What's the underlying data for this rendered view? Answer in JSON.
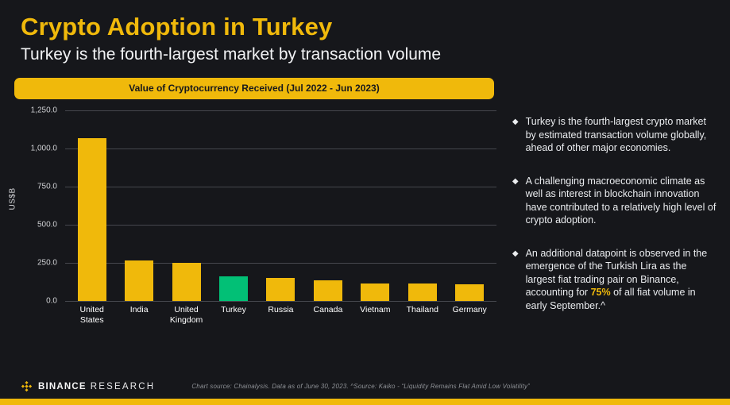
{
  "page": {
    "title": "Crypto Adoption in Turkey",
    "subtitle": "Turkey is the fourth-largest market by transaction volume"
  },
  "banner": {
    "label": "Value of Cryptocurrency Received (Jul 2022 - Jun 2023)"
  },
  "chart_data": {
    "type": "bar",
    "title": "Value of Cryptocurrency Received (Jul 2022 - Jun 2023)",
    "xlabel": "",
    "ylabel": "US$B",
    "ylim": [
      0,
      1250
    ],
    "yticks": [
      "1,250.0",
      "1,000.0",
      "750.0",
      "500.0",
      "250.0",
      "0.0"
    ],
    "categories": [
      "United States",
      "India",
      "United Kingdom",
      "Turkey",
      "Russia",
      "Canada",
      "Vietnam",
      "Thailand",
      "Germany"
    ],
    "values": [
      1066,
      268,
      250,
      160,
      150,
      138,
      115,
      113,
      110
    ],
    "highlight_category": "Turkey",
    "colors": {
      "default": "#F0B90B",
      "highlight": "#02C076"
    },
    "grid": true,
    "legend": false
  },
  "bullets": [
    {
      "pre": "Turkey is the fourth-largest crypto market by estimated transaction volume globally, ahead of other major economies.",
      "highlight": "",
      "post": ""
    },
    {
      "pre": "A challenging macroeconomic climate as well as interest in blockchain innovation have contributed to a relatively high level of crypto adoption.",
      "highlight": "",
      "post": ""
    },
    {
      "pre": "An additional datapoint is observed in the emergence of the Turkish Lira as the largest fiat trading pair on Binance, accounting for ",
      "highlight": "75%",
      "post": " of all fiat volume in early September.^"
    }
  ],
  "footer": {
    "brand_binance": "BINANCE",
    "brand_research": "RESEARCH",
    "footnote": "Chart source: Chainalysis. Data as of June 30, 2023. ^Source: Kaiko - “Liquidity Remains Flat Amid Low Volatility”"
  },
  "colors": {
    "background": "#16171b",
    "accent_yellow": "#F0B90B",
    "highlight_green": "#02C076",
    "text_white": "#eaecef"
  }
}
